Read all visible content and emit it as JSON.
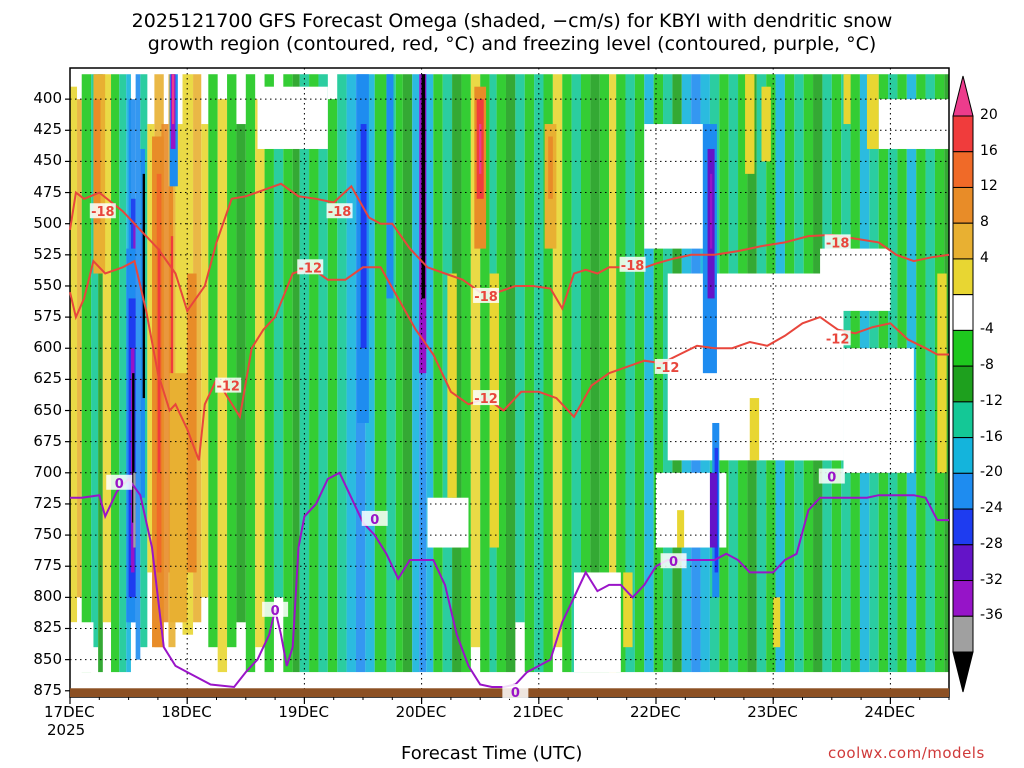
{
  "title_line1": "2025121700 GFS Forecast Omega (shaded, −cm/s) for KBYI with dendritic snow",
  "title_line2": "growth region (contoured, red, °C) and freezing level (contoured, purple, °C)",
  "xaxis_title": "Forecast Time (UTC)",
  "credit": "coolwx.com/models",
  "colors": {
    "dendritic_contour": "#e8463c",
    "freezing_contour": "#9a14c8",
    "terrain": "#8c5023"
  },
  "chart_data": {
    "type": "heatmap",
    "title": "2025121700 GFS Forecast Omega (shaded, −cm/s) for KBYI with dendritic snow growth region (contoured, red, °C) and freezing level (contoured, purple, °C)",
    "xlabel": "Forecast Time (UTC)",
    "ylabel": "",
    "y_axis": {
      "ticks": [
        400,
        425,
        450,
        475,
        500,
        525,
        550,
        575,
        600,
        625,
        650,
        675,
        700,
        725,
        750,
        775,
        800,
        825,
        850,
        875
      ],
      "ylim": [
        375,
        880
      ],
      "grid": true
    },
    "x_axis": {
      "ticks": [
        "17DEC",
        "18DEC",
        "19DEC",
        "20DEC",
        "21DEC",
        "22DEC",
        "23DEC",
        "24DEC"
      ],
      "year_label": "2025",
      "xlim_days": [
        0,
        7.5
      ],
      "grid": true
    },
    "colorbar": {
      "labels": [
        "20",
        "16",
        "12",
        "8",
        "4",
        "-4",
        "-8",
        "-12",
        "-16",
        "-20",
        "-24",
        "-28",
        "-32",
        "-36"
      ],
      "colors": [
        "#ec3c8c",
        "#f03c3c",
        "#f06a28",
        "#e88c28",
        "#e8b032",
        "#e8d632",
        "#ffffff",
        "#1ec81e",
        "#1ea01e",
        "#14c896",
        "#14b4dc",
        "#1e8cf0",
        "#1e3cf0",
        "#6414c8",
        "#9614c8",
        "#a0a0a0",
        "#000000"
      ]
    },
    "contours": [
      {
        "name": "-18",
        "color": "#e8463c",
        "labels": [
          {
            "x": 0.28,
            "y": 490,
            "text": "-18"
          },
          {
            "x": 2.3,
            "y": 490,
            "text": "-18"
          },
          {
            "x": 3.55,
            "y": 558,
            "text": "-18"
          },
          {
            "x": 4.8,
            "y": 533,
            "text": "-18"
          },
          {
            "x": 6.55,
            "y": 515,
            "text": "-18"
          }
        ],
        "x": [
          0,
          0.05,
          0.12,
          0.25,
          0.45,
          0.6,
          0.75,
          0.9,
          1.0,
          1.15,
          1.25,
          1.38,
          1.5,
          1.65,
          1.8,
          1.95,
          2.1,
          2.25,
          2.4,
          2.55,
          2.65,
          2.75,
          2.9,
          3.05,
          3.2,
          3.35,
          3.5,
          3.65,
          3.8,
          3.95,
          4.1,
          4.2,
          4.3,
          4.4,
          4.5,
          4.6,
          4.7,
          4.85,
          5.0,
          5.15,
          5.3,
          5.5,
          5.7,
          5.9,
          6.1,
          6.3,
          6.5,
          6.7,
          6.9,
          7.05,
          7.2,
          7.35,
          7.5
        ],
        "y": [
          505,
          475,
          480,
          475,
          490,
          505,
          520,
          540,
          570,
          550,
          515,
          480,
          478,
          473,
          468,
          478,
          480,
          483,
          470,
          495,
          500,
          500,
          520,
          535,
          540,
          545,
          555,
          555,
          550,
          550,
          552,
          568,
          540,
          537,
          540,
          535,
          535,
          537,
          532,
          528,
          525,
          525,
          522,
          518,
          515,
          510,
          509,
          512,
          515,
          525,
          530,
          527,
          525
        ]
      },
      {
        "name": "-12",
        "color": "#e8463c",
        "labels": [
          {
            "x": 2.05,
            "y": 535,
            "text": "-12"
          },
          {
            "x": 1.35,
            "y": 630,
            "text": "-12"
          },
          {
            "x": 3.55,
            "y": 640,
            "text": "-12"
          },
          {
            "x": 5.1,
            "y": 615,
            "text": "-12"
          },
          {
            "x": 6.55,
            "y": 592,
            "text": "-12"
          }
        ],
        "x": [
          0,
          0.05,
          0.12,
          0.2,
          0.3,
          0.45,
          0.55,
          0.65,
          0.75,
          0.85,
          0.9,
          1.0,
          1.1,
          1.15,
          1.25,
          1.35,
          1.45,
          1.55,
          1.65,
          1.75,
          1.9,
          2.05,
          2.2,
          2.35,
          2.5,
          2.65,
          2.8,
          2.95,
          3.1,
          3.25,
          3.4,
          3.55,
          3.7,
          3.85,
          4.0,
          4.15,
          4.3,
          4.45,
          4.6,
          4.75,
          4.9,
          5.05,
          5.2,
          5.35,
          5.5,
          5.65,
          5.8,
          5.95,
          6.1,
          6.25,
          6.4,
          6.55,
          6.7,
          6.85,
          7.0,
          7.15,
          7.3,
          7.4,
          7.5
        ],
        "y": [
          555,
          575,
          560,
          530,
          540,
          535,
          530,
          570,
          620,
          650,
          645,
          665,
          690,
          645,
          625,
          640,
          655,
          600,
          585,
          575,
          540,
          535,
          545,
          545,
          535,
          535,
          560,
          585,
          605,
          635,
          645,
          640,
          650,
          635,
          635,
          640,
          655,
          630,
          620,
          615,
          610,
          612,
          605,
          598,
          600,
          600,
          595,
          598,
          590,
          580,
          575,
          585,
          588,
          583,
          580,
          593,
          600,
          605,
          605
        ]
      },
      {
        "name": "0",
        "color": "#9a14c8",
        "labels": [
          {
            "x": 0.42,
            "y": 708,
            "text": "0"
          },
          {
            "x": 1.75,
            "y": 810,
            "text": "0"
          },
          {
            "x": 2.6,
            "y": 737,
            "text": "0"
          },
          {
            "x": 3.8,
            "y": 876,
            "text": "0"
          },
          {
            "x": 5.15,
            "y": 771,
            "text": "0"
          },
          {
            "x": 6.5,
            "y": 703,
            "text": "0"
          }
        ],
        "x": [
          0,
          0.1,
          0.25,
          0.3,
          0.4,
          0.5,
          0.6,
          0.7,
          0.75,
          0.8,
          0.9,
          1.0,
          1.2,
          1.4,
          1.5,
          1.6,
          1.7,
          1.75,
          1.8,
          1.85,
          1.9,
          1.95,
          2.0,
          2.1,
          2.2,
          2.3,
          2.4,
          2.5,
          2.6,
          2.7,
          2.8,
          2.9,
          3.0,
          3.1,
          3.2,
          3.3,
          3.4,
          3.5,
          3.6,
          3.7,
          3.8,
          3.9,
          4.0,
          4.1,
          4.2,
          4.3,
          4.4,
          4.5,
          4.6,
          4.7,
          4.8,
          4.9,
          5.0,
          5.1,
          5.2,
          5.3,
          5.4,
          5.5,
          5.6,
          5.7,
          5.8,
          5.9,
          6.0,
          6.1,
          6.2,
          6.3,
          6.4,
          6.5,
          6.6,
          6.7,
          6.8,
          6.9,
          7.0,
          7.1,
          7.2,
          7.3,
          7.4,
          7.5
        ],
        "y": [
          720,
          720,
          718,
          735,
          715,
          705,
          718,
          760,
          800,
          840,
          855,
          860,
          870,
          872,
          860,
          850,
          830,
          810,
          830,
          855,
          840,
          760,
          735,
          725,
          705,
          700,
          720,
          740,
          750,
          765,
          785,
          770,
          770,
          770,
          790,
          830,
          855,
          870,
          872,
          872,
          870,
          860,
          855,
          850,
          820,
          800,
          780,
          795,
          790,
          790,
          800,
          790,
          775,
          770,
          770,
          770,
          770,
          770,
          765,
          770,
          780,
          780,
          780,
          770,
          765,
          730,
          720,
          720,
          720,
          720,
          720,
          718,
          718,
          718,
          718,
          720,
          738,
          738
        ]
      }
    ],
    "terrain_top_hpa": 873
  }
}
